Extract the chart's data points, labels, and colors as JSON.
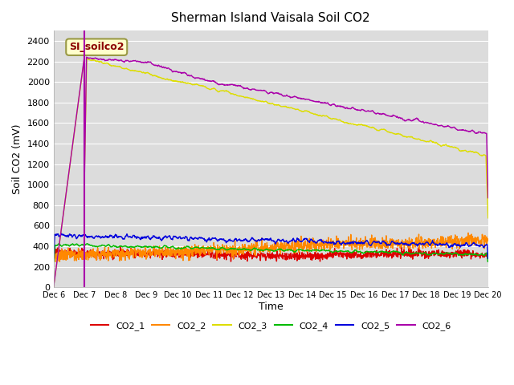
{
  "title": "Sherman Island Vaisala Soil CO2",
  "ylabel": "Soil CO2 (mV)",
  "xlabel": "Time",
  "ylim": [
    0,
    2500
  ],
  "yticks": [
    0,
    200,
    400,
    600,
    800,
    1000,
    1200,
    1400,
    1600,
    1800,
    2000,
    2200,
    2400
  ],
  "fig_bg_color": "#ffffff",
  "plot_bg_color": "#dcdcdc",
  "legend_label": "SI_soilco2",
  "x_tick_labels": [
    "Dec 6",
    "Dec 7",
    "Dec 8",
    "Dec 9",
    "Dec 10",
    "Dec 11",
    "Dec 12",
    "Dec 13",
    "Dec 14",
    "Dec 15",
    "Dec 16",
    "Dec 17",
    "Dec 18",
    "Dec 19",
    "Dec 20"
  ],
  "colors": {
    "CO2_1": "#dd0000",
    "CO2_2": "#ff8800",
    "CO2_3": "#dddd00",
    "CO2_4": "#00bb00",
    "CO2_5": "#0000dd",
    "CO2_6": "#aa00aa"
  },
  "vline_x": 1.0,
  "vline_color": "#aa00aa",
  "n_points": 1400
}
